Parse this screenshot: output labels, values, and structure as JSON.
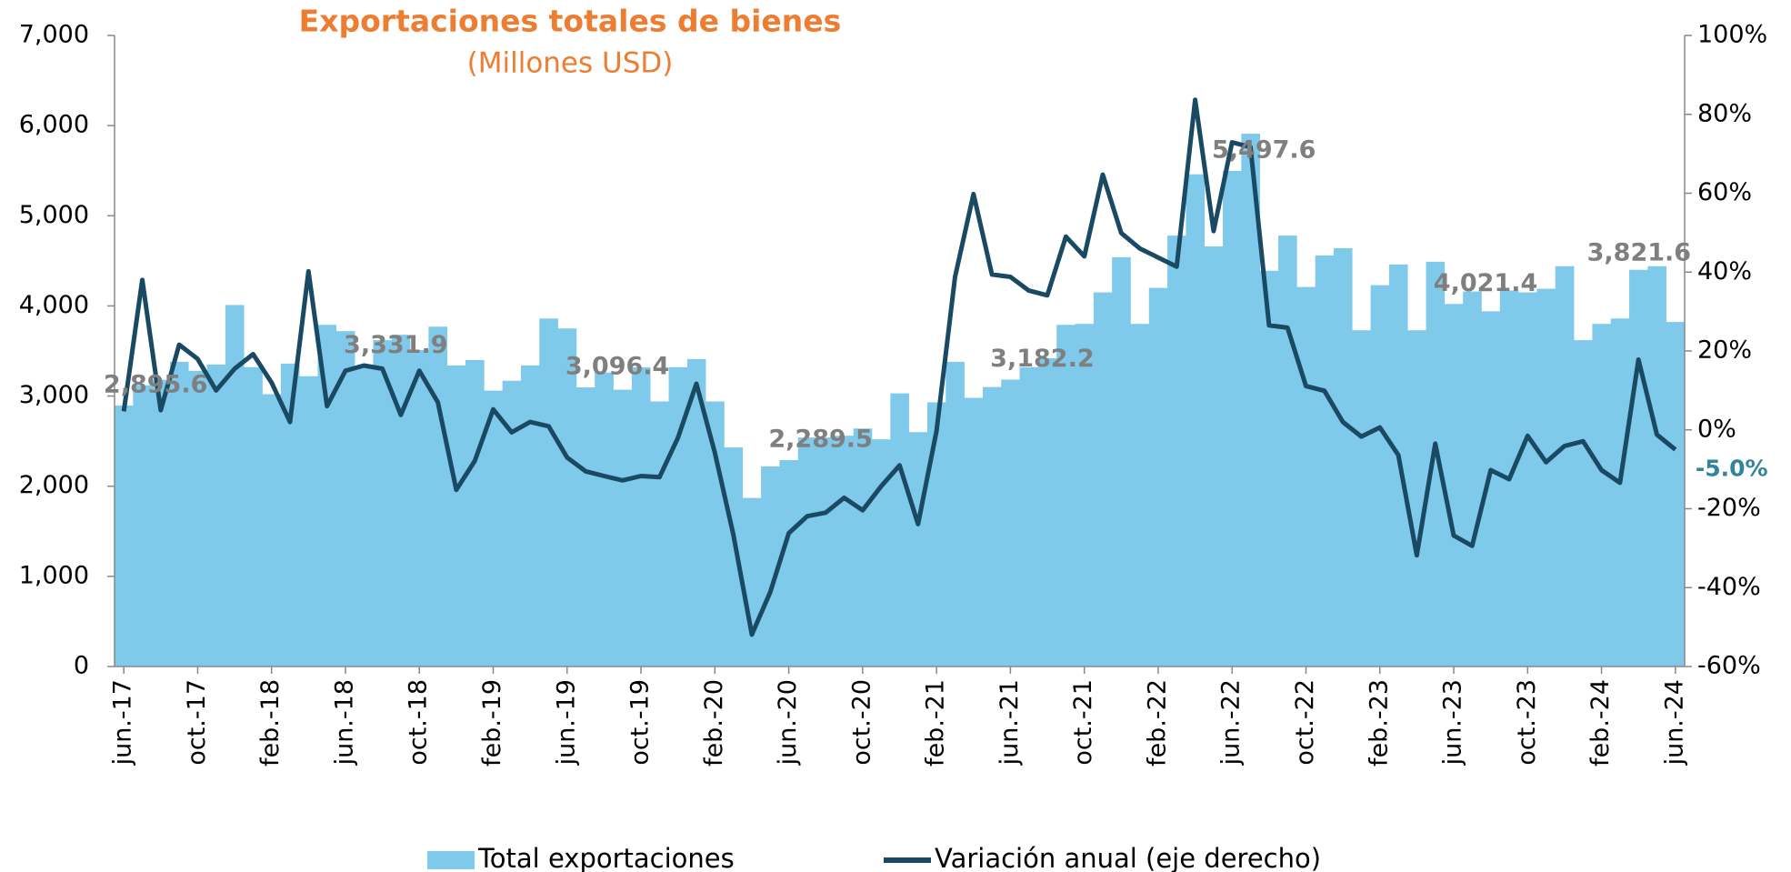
{
  "chart_data": {
    "type": "bar_line",
    "title": "Exportaciones totales de bienes",
    "subtitle": "(Millones USD)",
    "categories": [
      "jun.-17",
      null,
      null,
      null,
      "oct.-17",
      null,
      null,
      null,
      "feb.-18",
      null,
      null,
      null,
      "jun.-18",
      null,
      null,
      null,
      "oct.-18",
      null,
      null,
      null,
      "feb.-19",
      null,
      null,
      null,
      "jun.-19",
      null,
      null,
      null,
      "oct.-19",
      null,
      null,
      null,
      "feb.-20",
      null,
      null,
      null,
      "jun.-20",
      null,
      null,
      null,
      "oct.-20",
      null,
      null,
      null,
      "feb.-21",
      null,
      null,
      null,
      "jun.-21",
      null,
      null,
      null,
      "oct.-21",
      null,
      null,
      null,
      "feb.-22",
      null,
      null,
      null,
      "jun.-22",
      null,
      null,
      null,
      "oct.-22",
      null,
      null,
      null,
      "feb.-23",
      null,
      null,
      null,
      "jun.-23",
      null,
      null,
      null,
      "oct.-23",
      null,
      null,
      null,
      "feb.-24",
      null,
      null,
      null,
      "jun.-24"
    ],
    "series": [
      {
        "name": "Total exportaciones",
        "type": "bar",
        "color": "#7FC9EB",
        "values": [
          2895.6,
          3120,
          3180,
          3380,
          3280,
          3350,
          4010,
          3320,
          3020,
          3360,
          3220,
          3790,
          3720,
          3331.9,
          3620,
          3680,
          3510,
          3770,
          3340,
          3400,
          3060,
          3170,
          3340,
          3860,
          3750,
          3096.4,
          3260,
          3070,
          3320,
          2940,
          3320,
          3410,
          2940,
          2430,
          1870,
          2220,
          2289.5,
          2540,
          2540,
          2560,
          2640,
          2520,
          3030,
          2600,
          2930,
          3380,
          2980,
          3100,
          3182.2,
          3320,
          3420,
          3790,
          3800,
          4150,
          4540,
          3800,
          4200,
          4780,
          5460,
          4660,
          5497.6,
          5910,
          4390,
          4780,
          4210,
          4560,
          4640,
          3730,
          4230,
          4460,
          3730,
          4490,
          4021.4,
          4160,
          3940,
          4170,
          4150,
          4190,
          4440,
          3620,
          3800,
          3860,
          4400,
          4440,
          3821.6
        ],
        "value_labels": [
          "2,895.6",
          null,
          null,
          null,
          null,
          null,
          null,
          null,
          null,
          null,
          null,
          null,
          null,
          "3,331.9",
          null,
          null,
          null,
          null,
          null,
          null,
          null,
          null,
          null,
          null,
          null,
          "3,096.4",
          null,
          null,
          null,
          null,
          null,
          null,
          null,
          null,
          null,
          null,
          "2,289.5",
          null,
          null,
          null,
          null,
          null,
          null,
          null,
          null,
          null,
          null,
          null,
          "3,182.2",
          null,
          null,
          null,
          null,
          null,
          null,
          null,
          null,
          null,
          null,
          null,
          "5,497.6",
          null,
          null,
          null,
          null,
          null,
          null,
          null,
          null,
          null,
          null,
          null,
          "4,021.4",
          null,
          null,
          null,
          null,
          null,
          null,
          null,
          null,
          null,
          null,
          null,
          "3,821.6"
        ]
      },
      {
        "name": "Variación anual (eje derecho)",
        "type": "line",
        "axis": "y2",
        "color": "#1A4A63",
        "values": [
          4.7,
          38,
          5,
          21.6,
          18,
          10,
          15.5,
          19.2,
          12,
          2,
          40.2,
          6,
          15,
          16.3,
          15.5,
          3.8,
          15,
          7,
          -15.2,
          -7.9,
          5.2,
          -0.6,
          2,
          0.9,
          -7,
          -10.5,
          -11.7,
          -12.8,
          -11.7,
          -12,
          -2,
          11.7,
          -5.8,
          -26.5,
          -51.9,
          -41.1,
          -26.2,
          -21.9,
          -21,
          -17.2,
          -20.4,
          -14.3,
          -9,
          -23.9,
          -0.3,
          38.8,
          59.8,
          39.4,
          38.8,
          35.3,
          34.1,
          49,
          44,
          64.7,
          49.9,
          46,
          43.7,
          41.4,
          83.7,
          50.4,
          72.9,
          71.7,
          26.5,
          25.9,
          11.1,
          9.9,
          2,
          -1.7,
          0.6,
          -6.4,
          -31.8,
          -3.5,
          -26.8,
          -29.4,
          -10.2,
          -12.5,
          -1.5,
          -8.2,
          -4.1,
          -2.9,
          -10.2,
          -13.4,
          17.8,
          -1.2,
          -5.0
        ],
        "value_labels": [
          null,
          null,
          null,
          null,
          null,
          null,
          null,
          null,
          null,
          null,
          null,
          null,
          null,
          null,
          null,
          null,
          null,
          null,
          null,
          null,
          null,
          null,
          null,
          null,
          null,
          null,
          null,
          null,
          null,
          null,
          null,
          null,
          null,
          null,
          null,
          null,
          null,
          null,
          null,
          null,
          null,
          null,
          null,
          null,
          null,
          null,
          null,
          null,
          null,
          null,
          null,
          null,
          null,
          null,
          null,
          null,
          null,
          null,
          null,
          null,
          null,
          null,
          null,
          null,
          null,
          null,
          null,
          null,
          null,
          null,
          null,
          null,
          null,
          null,
          null,
          null,
          null,
          null,
          null,
          null,
          null,
          null,
          null,
          null,
          "-5.0%"
        ]
      }
    ],
    "ylim": [
      0,
      7000
    ],
    "yticks": [
      0,
      {
        "value": 1000,
        "label": "1,000"
      },
      {
        "value": 2000,
        "label": "2,000"
      },
      {
        "value": 3000,
        "label": "3,000"
      },
      {
        "value": 4000,
        "label": "4,000"
      },
      {
        "value": 5000,
        "label": "5,000"
      },
      {
        "value": 6000,
        "label": "6,000"
      },
      {
        "value": 7000,
        "label": "7,000"
      }
    ],
    "y2lim": [
      -60,
      100
    ],
    "y2ticks": [
      {
        "value": -60,
        "label": "-60%"
      },
      {
        "value": -40,
        "label": "-40%"
      },
      {
        "value": -20,
        "label": "-20%"
      },
      {
        "value": 0,
        "label": "0%"
      },
      {
        "value": 20,
        "label": "20%"
      },
      {
        "value": 40,
        "label": "40%"
      },
      {
        "value": 60,
        "label": "60%"
      },
      {
        "value": 80,
        "label": "80%"
      },
      {
        "value": 100,
        "label": "100%"
      }
    ],
    "legend": "bottom"
  }
}
